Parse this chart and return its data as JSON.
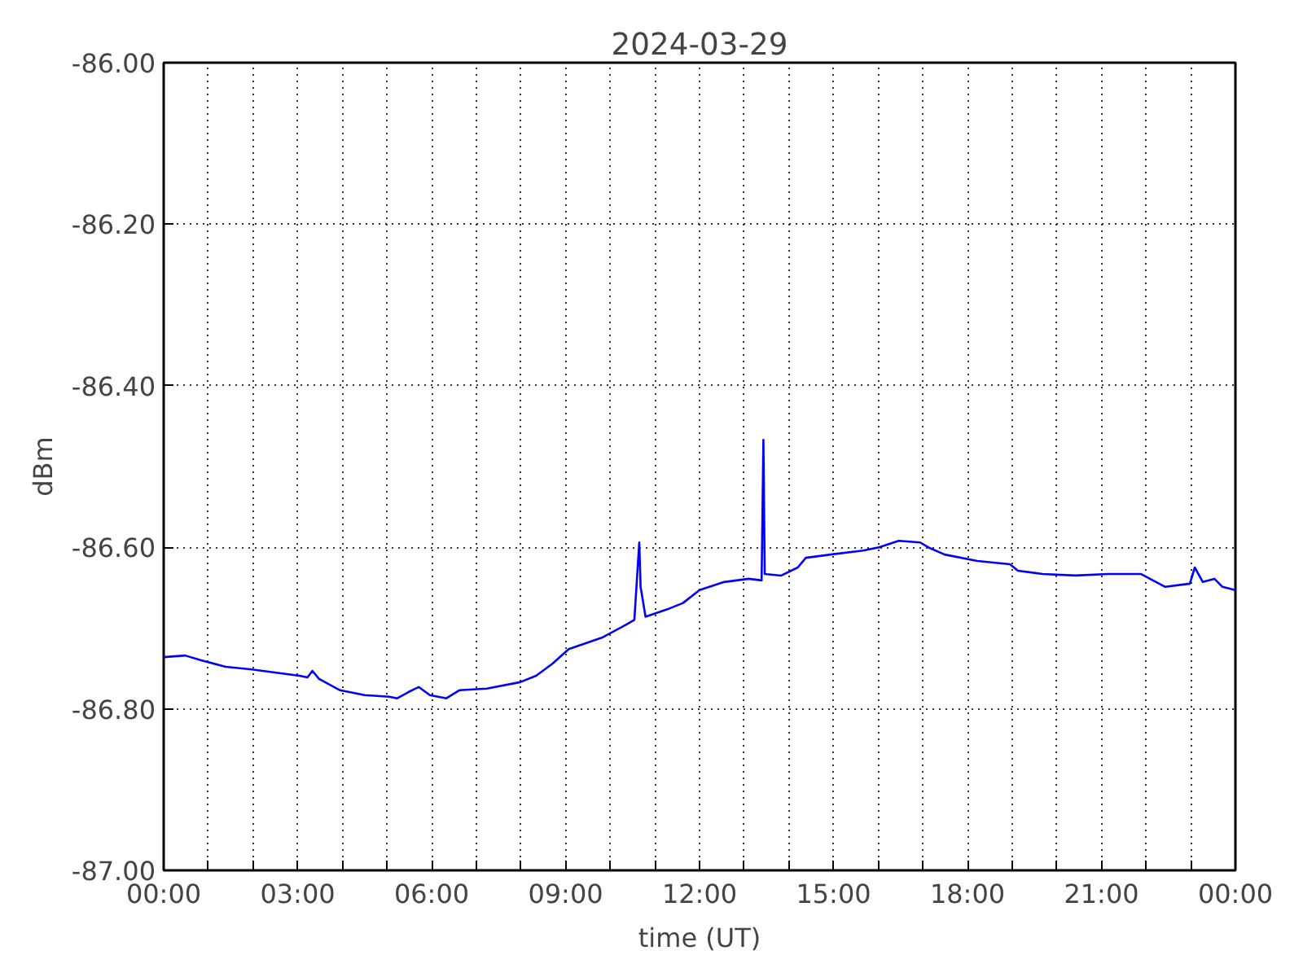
{
  "chart_data": {
    "type": "line",
    "title": "2024-03-29",
    "xlabel": "time (UT)",
    "ylabel": "dBm",
    "xlim": [
      0,
      24
    ],
    "ylim": [
      -87,
      -86
    ],
    "xticks": [
      {
        "value": 0,
        "label": "00:00"
      },
      {
        "value": 1,
        "label": null
      },
      {
        "value": 2,
        "label": null
      },
      {
        "value": 3,
        "label": "03:00"
      },
      {
        "value": 4,
        "label": null
      },
      {
        "value": 5,
        "label": null
      },
      {
        "value": 6,
        "label": "06:00"
      },
      {
        "value": 7,
        "label": null
      },
      {
        "value": 8,
        "label": null
      },
      {
        "value": 9,
        "label": "09:00"
      },
      {
        "value": 10,
        "label": null
      },
      {
        "value": 11,
        "label": null
      },
      {
        "value": 12,
        "label": "12:00"
      },
      {
        "value": 13,
        "label": null
      },
      {
        "value": 14,
        "label": null
      },
      {
        "value": 15,
        "label": "15:00"
      },
      {
        "value": 16,
        "label": null
      },
      {
        "value": 17,
        "label": null
      },
      {
        "value": 18,
        "label": "18:00"
      },
      {
        "value": 19,
        "label": null
      },
      {
        "value": 20,
        "label": null
      },
      {
        "value": 21,
        "label": "21:00"
      },
      {
        "value": 22,
        "label": null
      },
      {
        "value": 23,
        "label": null
      },
      {
        "value": 24,
        "label": "00:00"
      }
    ],
    "yticks": [
      {
        "value": -87,
        "label": "-87.00"
      },
      {
        "value": -86.8,
        "label": "-86.80"
      },
      {
        "value": -86.6,
        "label": "-86.60"
      },
      {
        "value": -86.4,
        "label": "-86.40"
      },
      {
        "value": -86.2,
        "label": "-86.20"
      },
      {
        "value": -86,
        "label": "-86.00"
      }
    ],
    "grid": true,
    "marker": "none",
    "line_style": "solid",
    "x": [
      0,
      0.48,
      0.84,
      1.39,
      1.94,
      2.49,
      3.04,
      3.22,
      3.33,
      3.48,
      3.95,
      4.5,
      5.05,
      5.23,
      5.49,
      5.71,
      5.96,
      6.33,
      6.62,
      7.24,
      7.98,
      8.34,
      8.71,
      9.07,
      9.81,
      10.35,
      10.54,
      10.61,
      10.65,
      10.68,
      10.79,
      11.27,
      11.63,
      12.0,
      12.55,
      13.1,
      13.39,
      13.43,
      13.46,
      13.83,
      14.2,
      14.38,
      14.93,
      15.66,
      16.02,
      16.46,
      16.94,
      17.12,
      17.49,
      18.22,
      18.95,
      19.13,
      19.68,
      20.42,
      21.15,
      21.88,
      22.43,
      22.98,
      23.09,
      23.27,
      23.53,
      23.71,
      24.0
    ],
    "series": [
      {
        "color": "#0000ff",
        "values": [
          -86.736,
          -86.734,
          -86.74,
          -86.748,
          -86.751,
          -86.755,
          -86.759,
          -86.761,
          -86.753,
          -86.763,
          -86.777,
          -86.783,
          -86.785,
          -86.787,
          -86.779,
          -86.773,
          -86.783,
          -86.787,
          -86.777,
          -86.775,
          -86.767,
          -86.759,
          -86.744,
          -86.726,
          -86.712,
          -86.696,
          -86.69,
          -86.629,
          -86.594,
          -86.649,
          -86.686,
          -86.677,
          -86.669,
          -86.653,
          -86.643,
          -86.639,
          -86.641,
          -86.467,
          -86.633,
          -86.635,
          -86.625,
          -86.613,
          -86.609,
          -86.604,
          -86.6,
          -86.592,
          -86.594,
          -86.6,
          -86.609,
          -86.617,
          -86.621,
          -86.629,
          -86.633,
          -86.635,
          -86.633,
          -86.633,
          -86.649,
          -86.645,
          -86.625,
          -86.643,
          -86.639,
          -86.649,
          -86.653
        ]
      }
    ]
  }
}
